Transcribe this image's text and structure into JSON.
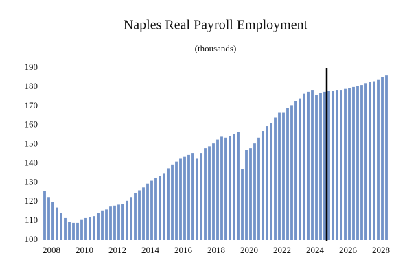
{
  "chart_data": {
    "type": "bar",
    "title": "Naples Real Payroll Employment",
    "subtitle": "(thousands)",
    "categories": [
      "2008",
      null,
      null,
      null,
      null,
      null,
      null,
      null,
      "2010",
      null,
      null,
      null,
      null,
      null,
      null,
      null,
      "2012",
      null,
      null,
      null,
      null,
      null,
      null,
      null,
      "2014",
      null,
      null,
      null,
      null,
      null,
      null,
      null,
      "2016",
      null,
      null,
      null,
      null,
      null,
      null,
      null,
      "2018",
      null,
      null,
      null,
      null,
      null,
      null,
      null,
      "2020",
      null,
      null,
      null,
      null,
      null,
      null,
      null,
      "2022",
      null,
      null,
      null,
      null,
      null,
      null,
      null,
      "2024",
      null,
      null,
      null,
      null,
      null,
      null,
      null,
      "2026",
      null,
      null,
      null,
      null,
      null,
      null,
      null,
      "2028",
      null,
      null,
      null
    ],
    "values": [
      125.5,
      122.5,
      120,
      117,
      114,
      111.5,
      109.5,
      109,
      109,
      110.5,
      111.5,
      112,
      112.5,
      114,
      115.5,
      116,
      117.5,
      118,
      118.5,
      119,
      120.5,
      122.5,
      124.5,
      126,
      127.5,
      129.5,
      131,
      132.5,
      133.5,
      135,
      137.5,
      139.5,
      141,
      142.5,
      143.5,
      144.5,
      145.5,
      142.5,
      145.5,
      148,
      149,
      150.5,
      152.5,
      154,
      153.5,
      154.5,
      155.5,
      156.5,
      137,
      147,
      148,
      150.5,
      153.5,
      157,
      159.5,
      161,
      164,
      166.5,
      166.5,
      169,
      170.5,
      172.5,
      174,
      176.5,
      177.5,
      178.5,
      176,
      177,
      177.5,
      178,
      178,
      178.5,
      178.5,
      179,
      179.5,
      180,
      180.5,
      181,
      182,
      182.5,
      183,
      184,
      185,
      186
    ],
    "color": "#7393c9",
    "ylim": [
      100,
      190
    ],
    "yticks": [
      100,
      110,
      120,
      130,
      140,
      150,
      160,
      170,
      180,
      190
    ],
    "grid": false
  }
}
